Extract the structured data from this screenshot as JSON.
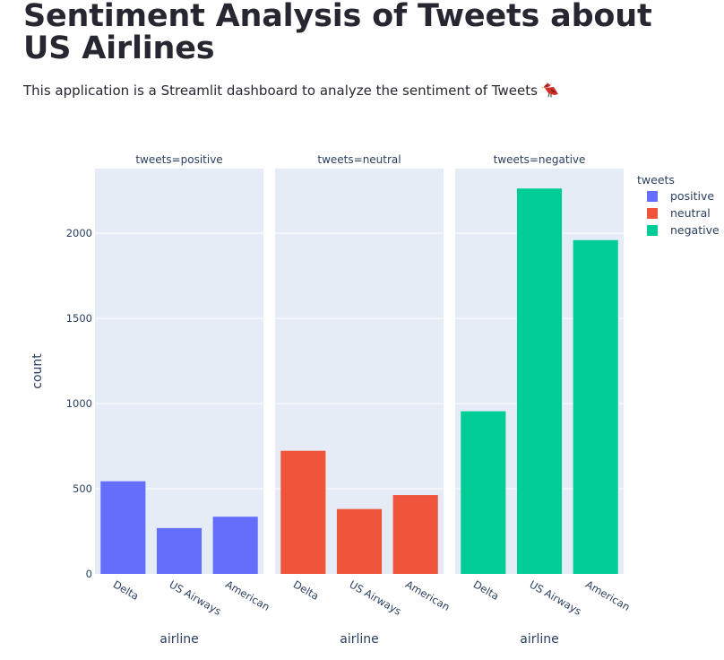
{
  "header": {
    "title": "Sentiment Analysis of Tweets about US Airlines",
    "subtitle": "This application is a Streamlit dashboard to analyze the sentiment of Tweets",
    "subtitle_icon": "bird-icon"
  },
  "chart_data": {
    "type": "bar",
    "facet_by": "tweets",
    "categories": [
      "Delta",
      "US Airways",
      "American"
    ],
    "series": [
      {
        "name": "positive",
        "facet_label": "tweets=positive",
        "color": "#636efa",
        "values": [
          544,
          269,
          336
        ]
      },
      {
        "name": "neutral",
        "facet_label": "tweets=neutral",
        "color": "#ef553b",
        "values": [
          723,
          381,
          463
        ]
      },
      {
        "name": "negative",
        "facet_label": "tweets=negative",
        "color": "#00cc96",
        "values": [
          955,
          2263,
          1960
        ]
      }
    ],
    "xlabel": "airline",
    "ylabel": "count",
    "ylim": [
      0,
      2380
    ],
    "yticks": [
      0,
      500,
      1000,
      1500,
      2000
    ],
    "grid": true,
    "legend": {
      "title": "tweets",
      "placement": "right"
    }
  }
}
